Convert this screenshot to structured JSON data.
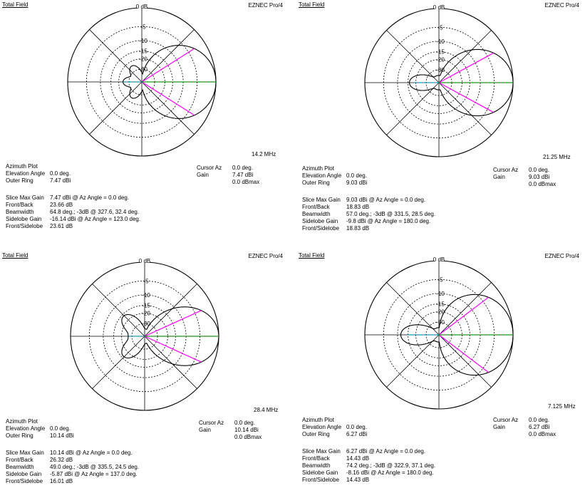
{
  "panels": [
    {
      "title": "Total Field",
      "brand": "EZNEC Pro/4",
      "zero_label": "0 dB",
      "ring_labels": [
        "-5",
        "-10",
        "-15",
        "-20",
        "-30"
      ],
      "frequency": "14.2 MHz",
      "plot_type": "Azimuth Plot",
      "elevation_label": "Elevation Angle",
      "elevation_value": "0.0 deg.",
      "outer_ring_label": "Outer Ring",
      "outer_ring_value": "7.47 dBi",
      "cursor_az_label": "Cursor Az",
      "cursor_az_value": "0.0 deg.",
      "gain_label": "Gain",
      "gain_value": "7.47 dBi",
      "gain_max": "0.0 dBmax",
      "slice_label": "Slice Max Gain",
      "slice_value": "7.47 dBi @ Az Angle = 0.0 deg.",
      "fb_label": "Front/Back",
      "fb_value": "23.66 dB",
      "bw_label": "Beamwidth",
      "bw_value": "64.8 deg.; -3dB @ 327.6, 32.4 deg.",
      "sl_label": "Sidelobe Gain",
      "sl_value": "-16.14 dBi @ Az Angle = 123.0 deg.",
      "fs_label": "Front/Sidelobe",
      "fs_value": "23.61 dB",
      "pattern": {
        "half_beamwidth_deg": 32.4,
        "front_back_db": 23.66,
        "sidelobe_angle_deg": 123.0,
        "sidelobe_rel_db": -23.61
      }
    },
    {
      "title": "Total Field",
      "brand": "EZNEC Pro/4",
      "zero_label": "0 dB",
      "ring_labels": [
        "-5",
        "-10",
        "-15",
        "-20",
        "-30"
      ],
      "frequency": "21.25 MHz",
      "plot_type": "Azimuth Plot",
      "elevation_label": "Elevation Angle",
      "elevation_value": "0.0 deg.",
      "outer_ring_label": "Outer Ring",
      "outer_ring_value": "9.03 dBi",
      "cursor_az_label": "Cursor Az",
      "cursor_az_value": "0.0 deg.",
      "gain_label": "Gain",
      "gain_value": "9.03 dBi",
      "gain_max": "0.0 dBmax",
      "slice_label": "Slice Max Gain",
      "slice_value": "9.03 dBi @ Az Angle = 0.0 deg.",
      "fb_label": "Front/Back",
      "fb_value": "18.83 dB",
      "bw_label": "Beamwidth",
      "bw_value": "57.0 deg.; -3dB @ 331.5, 28.5 deg.",
      "sl_label": "Sidelobe Gain",
      "sl_value": "-9.8 dBi @ Az Angle = 180.0 deg.",
      "fs_label": "Front/Sidelobe",
      "fs_value": "18.83 dB",
      "pattern": {
        "half_beamwidth_deg": 28.5,
        "front_back_db": 18.83,
        "sidelobe_angle_deg": 180.0,
        "sidelobe_rel_db": -18.83
      }
    },
    {
      "title": "Total Field",
      "brand": "EZNEC Pro/4",
      "zero_label": "0 dB",
      "ring_labels": [
        "-5",
        "-10",
        "-15",
        "-20",
        "-30"
      ],
      "frequency": "28.4 MHz",
      "plot_type": "Azimuth Plot",
      "elevation_label": "Elevation Angle",
      "elevation_value": "0.0 deg.",
      "outer_ring_label": "Outer Ring",
      "outer_ring_value": "10.14 dBi",
      "cursor_az_label": "Cursor Az",
      "cursor_az_value": "0.0 deg.",
      "gain_label": "Gain",
      "gain_value": "10.14 dBi",
      "gain_max": "0.0 dBmax",
      "slice_label": "Slice Max Gain",
      "slice_value": "10.14 dBi @ Az Angle = 0.0 deg.",
      "fb_label": "Front/Back",
      "fb_value": "26.32 dB",
      "bw_label": "Beamwidth",
      "bw_value": "49.0 deg.; -3dB @ 335.5, 24.5 deg.",
      "sl_label": "Sidelobe Gain",
      "sl_value": "-5.87 dBi @ Az Angle = 137.0 deg.",
      "fs_label": "Front/Sidelobe",
      "fs_value": "16.01 dB",
      "pattern": {
        "half_beamwidth_deg": 24.5,
        "front_back_db": 26.32,
        "sidelobe_angle_deg": 137.0,
        "sidelobe_rel_db": -16.01
      }
    },
    {
      "title": "Total Field",
      "brand": "EZNEC Pro/4",
      "zero_label": "0 dB",
      "ring_labels": [
        "-5",
        "-10",
        "-15",
        "-20",
        "-30"
      ],
      "frequency": "7.125 MHz",
      "plot_type": "Azimuth Plot",
      "elevation_label": "Elevation Angle",
      "elevation_value": "0.0 deg.",
      "outer_ring_label": "Outer Ring",
      "outer_ring_value": "6.27 dBi",
      "cursor_az_label": "Cursor Az",
      "cursor_az_value": "0.0 deg.",
      "gain_label": "Gain",
      "gain_value": "6.27 dBi",
      "gain_max": "0.0 dBmax",
      "slice_label": "Slice Max Gain",
      "slice_value": "6.27 dBi @ Az Angle = 0.0 deg.",
      "fb_label": "Front/Back",
      "fb_value": "14.43 dB",
      "bw_label": "Beamwidth",
      "bw_value": "74.2 deg.; -3dB @ 322.9, 37.1 deg.",
      "sl_label": "Sidelobe Gain",
      "sl_value": "-8.16 dBi @ Az Angle = 180.0 deg.",
      "fs_label": "Front/Sidelobe",
      "fs_value": "14.43 dB",
      "pattern": {
        "half_beamwidth_deg": 37.1,
        "front_back_db": 14.43,
        "sidelobe_angle_deg": 180.0,
        "sidelobe_rel_db": -14.43
      }
    }
  ],
  "colors": {
    "grid": "#000000",
    "pattern": "#000000",
    "beamwidth_lines": "#ff00ff",
    "cursor_line": "#00aa00",
    "back_line": "#00aacc"
  }
}
